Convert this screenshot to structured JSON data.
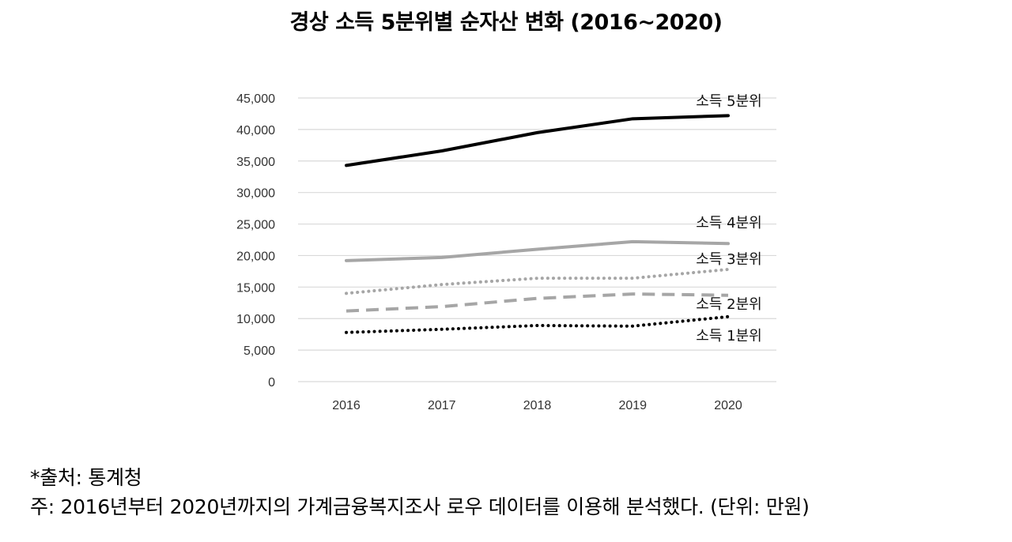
{
  "chart_data": {
    "type": "line",
    "title": "경상 소득 5분위별 순자산 변화 (2016~2020)",
    "xlabel": "",
    "ylabel": "",
    "categories": [
      "2016",
      "2017",
      "2018",
      "2019",
      "2020"
    ],
    "ylim": [
      0,
      45000
    ],
    "yticks": [
      0,
      5000,
      10000,
      15000,
      20000,
      25000,
      30000,
      35000,
      40000,
      45000
    ],
    "ytick_labels": [
      "0",
      "5,000",
      "10,000",
      "15,000",
      "20,000",
      "25,000",
      "30,000",
      "35,000",
      "40,000",
      "45,000"
    ],
    "grid": "horizontal",
    "legend": "inline labels at right end of each line",
    "series": [
      {
        "name": "소득 5분위",
        "values": [
          34300,
          36600,
          39500,
          41700,
          42200
        ],
        "color": "#000000",
        "style": "solid-thick"
      },
      {
        "name": "소득 4분위",
        "values": [
          19200,
          19700,
          21000,
          22200,
          21900
        ],
        "color": "#a6a6a6",
        "style": "solid"
      },
      {
        "name": "소득 3분위",
        "values": [
          14000,
          15400,
          16400,
          16400,
          17800
        ],
        "color": "#a6a6a6",
        "style": "dotted"
      },
      {
        "name": "소득 2분위",
        "values": [
          11200,
          11900,
          13200,
          13900,
          13700
        ],
        "color": "#a6a6a6",
        "style": "dashed"
      },
      {
        "name": "소득 1분위",
        "values": [
          7800,
          8300,
          8900,
          8800,
          10300
        ],
        "color": "#000000",
        "style": "dotted"
      }
    ]
  },
  "footer": {
    "source": "*출처:   통계청",
    "note": "주: 2016년부터 2020년까지의 가계금융복지조사 로우 데이터를 이용해 분석했다. (단위: 만원)"
  }
}
